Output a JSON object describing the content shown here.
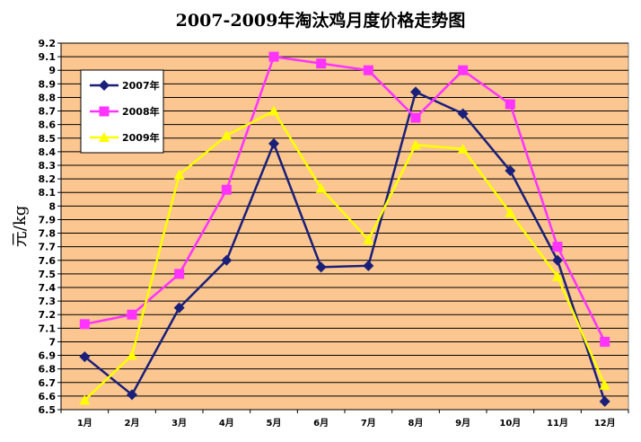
{
  "chart_data": {
    "type": "line",
    "title": "2007-2009年淘汰鸡月度价格走势图",
    "xlabel": "",
    "ylabel": "元/kg",
    "categories": [
      "1月",
      "2月",
      "3月",
      "4月",
      "5月",
      "6月",
      "7月",
      "8月",
      "9月",
      "10月",
      "11月",
      "12月"
    ],
    "ylim": [
      6.5,
      9.2
    ],
    "yticks": [
      "6.5",
      "6.6",
      "6.7",
      "6.8",
      "6.9",
      "7",
      "7.1",
      "7.2",
      "7.3",
      "7.4",
      "7.5",
      "7.6",
      "7.7",
      "7.8",
      "7.9",
      "8",
      "8.1",
      "8.2",
      "8.3",
      "8.4",
      "8.5",
      "8.6",
      "8.7",
      "8.8",
      "8.9",
      "9",
      "9.1",
      "9.2"
    ],
    "grid": true,
    "legend_position": "top-left",
    "series": [
      {
        "name": "2007年",
        "color": "#1a1f7a",
        "marker": "diamond",
        "values": [
          6.89,
          6.61,
          7.25,
          7.6,
          8.46,
          7.55,
          7.56,
          8.84,
          8.68,
          8.26,
          7.6,
          6.56
        ]
      },
      {
        "name": "2008年",
        "color": "#ff33ff",
        "marker": "square",
        "values": [
          7.13,
          7.2,
          7.5,
          8.12,
          9.1,
          9.05,
          9.0,
          8.65,
          9.0,
          8.75,
          7.7,
          7.0
        ]
      },
      {
        "name": "2009年",
        "color": "#ffff00",
        "marker": "triangle",
        "values": [
          6.57,
          6.9,
          8.23,
          8.52,
          8.7,
          8.13,
          7.75,
          8.45,
          8.42,
          7.95,
          7.48,
          6.68
        ]
      }
    ],
    "colors": {
      "plot_background": "#fbc690",
      "gridline": "#000000"
    }
  }
}
